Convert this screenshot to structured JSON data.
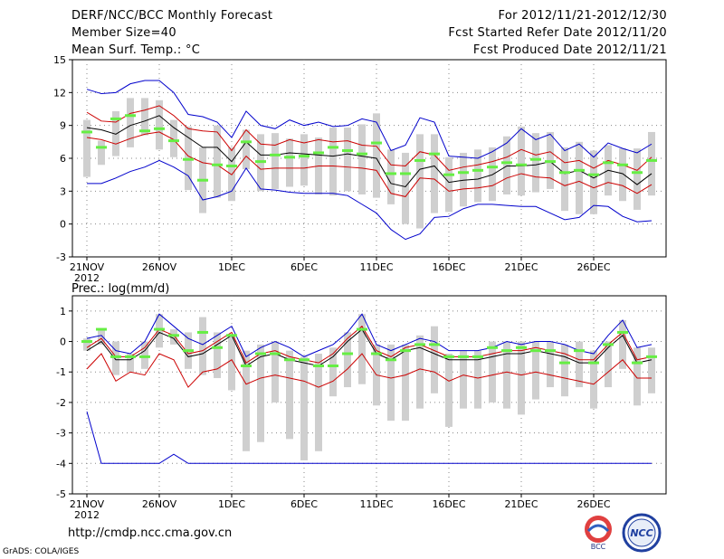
{
  "header": {
    "title": "DERF/NCC/BCC Monthly Forecast",
    "member_size": "Member Size=40",
    "variable": "Mean Surf. Temp.: °C",
    "for_range": "For 2012/11/21-2012/12/30",
    "fcst_started": "Fcst Started Refer Date 2012/11/20",
    "fcst_produced": "Fcst Produced Date 2012/11/21"
  },
  "footer": {
    "url": "http://cmdp.ncc.cma.gov.cn",
    "credit": "GrADS: COLA/IGES",
    "logo_bcc": "BCC",
    "logo_ncc": "NCC"
  },
  "colors": {
    "blue": "#0000cc",
    "red": "#cc0000",
    "black": "#000000",
    "green": "#66ee44",
    "box": "#cfcfcf"
  },
  "chart_data": [
    {
      "type": "line",
      "title": "Mean Surf. Temp.: °C",
      "ylim": [
        -3,
        15
      ],
      "yticks": [
        -3,
        0,
        3,
        6,
        9,
        12,
        15
      ],
      "xlabels": [
        {
          "day": 1,
          "label": "21NOV",
          "sub": "2012"
        },
        {
          "day": 6,
          "label": "26NOV"
        },
        {
          "day": 11,
          "label": "1DEC"
        },
        {
          "day": 16,
          "label": "6DEC"
        },
        {
          "day": 21,
          "label": "11DEC"
        },
        {
          "day": 26,
          "label": "16DEC"
        },
        {
          "day": 31,
          "label": "21DEC"
        },
        {
          "day": 36,
          "label": "26DEC"
        }
      ],
      "days": [
        1,
        2,
        3,
        4,
        5,
        6,
        7,
        8,
        9,
        10,
        11,
        12,
        13,
        14,
        15,
        16,
        17,
        18,
        19,
        20,
        21,
        22,
        23,
        24,
        25,
        26,
        27,
        28,
        29,
        30,
        31,
        32,
        33,
        34,
        35,
        36,
        37,
        38,
        39,
        40
      ],
      "series": [
        {
          "name": "max",
          "color": "blue",
          "values": [
            12.3,
            11.9,
            12.0,
            12.8,
            13.1,
            13.1,
            12.0,
            10.0,
            9.8,
            9.3,
            7.9,
            10.3,
            9.0,
            8.7,
            9.5,
            9.0,
            9.3,
            8.9,
            9.0,
            9.6,
            9.3,
            6.7,
            7.2,
            9.7,
            9.3,
            6.2,
            6.1,
            6.0,
            6.6,
            7.4,
            8.7,
            7.7,
            8.2,
            6.7,
            7.3,
            6.1,
            7.4,
            6.9,
            6.5,
            7.3
          ]
        },
        {
          "name": "upper",
          "color": "red",
          "values": [
            10.2,
            9.4,
            9.3,
            10.1,
            10.4,
            10.8,
            9.9,
            8.7,
            8.5,
            8.4,
            6.7,
            8.6,
            7.3,
            7.2,
            7.7,
            7.4,
            7.7,
            7.5,
            7.6,
            7.2,
            7.1,
            5.4,
            5.3,
            6.6,
            6.3,
            4.9,
            5.2,
            5.4,
            5.7,
            6.1,
            6.8,
            6.3,
            6.6,
            5.6,
            5.8,
            5.1,
            5.8,
            5.4,
            4.9,
            6.1
          ]
        },
        {
          "name": "mean",
          "color": "black",
          "values": [
            8.8,
            8.6,
            8.2,
            9.0,
            9.4,
            9.9,
            8.8,
            7.9,
            7.0,
            7.0,
            5.7,
            7.5,
            6.3,
            6.3,
            6.5,
            6.4,
            6.3,
            6.2,
            6.4,
            6.2,
            6.0,
            3.7,
            3.4,
            5.0,
            5.3,
            3.8,
            4.0,
            4.1,
            4.5,
            5.3,
            5.3,
            5.4,
            5.7,
            4.6,
            4.9,
            4.2,
            4.9,
            4.6,
            3.6,
            4.6
          ]
        },
        {
          "name": "lower",
          "color": "red",
          "values": [
            7.9,
            7.7,
            7.3,
            7.8,
            8.2,
            8.4,
            7.7,
            6.2,
            5.6,
            5.4,
            4.5,
            6.2,
            5.0,
            5.1,
            5.1,
            5.1,
            5.3,
            5.3,
            5.2,
            5.1,
            4.9,
            2.8,
            2.5,
            4.2,
            4.1,
            3.0,
            3.2,
            3.3,
            3.5,
            4.2,
            4.6,
            4.3,
            4.2,
            3.5,
            3.9,
            3.3,
            3.8,
            3.5,
            2.8,
            3.6
          ]
        },
        {
          "name": "min",
          "color": "blue",
          "values": [
            3.7,
            3.7,
            4.2,
            4.8,
            5.2,
            5.8,
            5.2,
            4.4,
            2.2,
            2.5,
            3.0,
            5.1,
            3.2,
            3.1,
            2.9,
            2.8,
            2.8,
            2.8,
            2.6,
            1.8,
            1.0,
            -0.5,
            -1.4,
            -0.9,
            0.6,
            0.7,
            1.4,
            1.8,
            1.8,
            1.7,
            1.6,
            1.6,
            1.0,
            0.4,
            0.6,
            1.7,
            1.6,
            0.7,
            0.2,
            0.3
          ]
        },
        {
          "name": "observed",
          "color": "green",
          "values": [
            8.4,
            7.0,
            9.6,
            9.9,
            8.5,
            8.7,
            7.6,
            5.9,
            4.0,
            5.4,
            5.3,
            7.5,
            5.7,
            6.3,
            6.1,
            6.2,
            6.5,
            7.0,
            6.7,
            6.4,
            7.4,
            4.6,
            4.6,
            5.8,
            6.4,
            4.5,
            4.7,
            4.9,
            5.2,
            5.6,
            5.4,
            5.9,
            5.7,
            4.7,
            4.9,
            4.5,
            5.6,
            5.4,
            4.7,
            5.8
          ]
        }
      ],
      "range_bars": {
        "low": [
          4.3,
          5.4,
          6.2,
          7.0,
          8.1,
          6.8,
          6.1,
          3.1,
          1.0,
          2.4,
          2.1,
          5.0,
          3.0,
          3.2,
          3.4,
          3.5,
          2.7,
          2.6,
          3.0,
          2.7,
          2.4,
          1.8,
          0.0,
          -0.4,
          1.0,
          1.1,
          1.6,
          2.0,
          2.1,
          2.7,
          2.6,
          2.9,
          3.2,
          1.2,
          0.9,
          0.9,
          2.6,
          2.1,
          1.3,
          2.6
        ],
        "high": [
          9.5,
          7.6,
          10.3,
          11.5,
          11.5,
          11.3,
          9.5,
          8.9,
          7.0,
          9.0,
          7.0,
          8.6,
          8.2,
          8.3,
          7.8,
          8.2,
          7.9,
          8.8,
          8.8,
          9.1,
          10.1,
          6.8,
          6.5,
          8.2,
          8.2,
          6.1,
          6.5,
          6.8,
          7.0,
          8.0,
          8.9,
          8.3,
          8.4,
          7.0,
          7.5,
          6.7,
          7.2,
          6.9,
          6.9,
          8.4
        ]
      }
    },
    {
      "type": "line",
      "title": "Prec.: log(mm/d)",
      "ylim": [
        -5,
        1.5
      ],
      "yticks": [
        -5,
        -4,
        -3,
        -2,
        -1,
        0,
        1
      ],
      "xlabels": [
        {
          "day": 1,
          "label": "21NOV",
          "sub": "2012"
        },
        {
          "day": 6,
          "label": "26NOV"
        },
        {
          "day": 11,
          "label": "1DEC"
        },
        {
          "day": 16,
          "label": "6DEC"
        },
        {
          "day": 21,
          "label": "11DEC"
        },
        {
          "day": 26,
          "label": "16DEC"
        },
        {
          "day": 31,
          "label": "21DEC"
        },
        {
          "day": 36,
          "label": "26DEC"
        }
      ],
      "days": [
        1,
        2,
        3,
        4,
        5,
        6,
        7,
        8,
        9,
        10,
        11,
        12,
        13,
        14,
        15,
        16,
        17,
        18,
        19,
        20,
        21,
        22,
        23,
        24,
        25,
        26,
        27,
        28,
        29,
        30,
        31,
        32,
        33,
        34,
        35,
        36,
        37,
        38,
        39,
        40
      ],
      "series": [
        {
          "name": "max",
          "color": "blue",
          "values": [
            0.1,
            0.2,
            -0.3,
            -0.4,
            0.0,
            0.9,
            0.5,
            0.1,
            -0.1,
            0.2,
            0.5,
            -0.5,
            -0.2,
            0.0,
            -0.2,
            -0.5,
            -0.3,
            -0.1,
            0.3,
            0.9,
            -0.1,
            -0.3,
            -0.1,
            0.1,
            0.0,
            -0.3,
            -0.3,
            -0.3,
            -0.2,
            0.0,
            -0.1,
            0.0,
            0.0,
            -0.1,
            -0.3,
            -0.4,
            0.2,
            0.7,
            -0.2,
            -0.1
          ]
        },
        {
          "name": "upper",
          "color": "red",
          "values": [
            -0.2,
            0.1,
            -0.5,
            -0.5,
            -0.2,
            0.4,
            0.2,
            -0.4,
            -0.3,
            0.0,
            0.3,
            -0.7,
            -0.4,
            -0.3,
            -0.5,
            -0.6,
            -0.7,
            -0.4,
            0.1,
            0.5,
            -0.3,
            -0.5,
            -0.2,
            -0.1,
            -0.3,
            -0.5,
            -0.5,
            -0.5,
            -0.4,
            -0.3,
            -0.3,
            -0.2,
            -0.3,
            -0.4,
            -0.6,
            -0.6,
            -0.1,
            0.3,
            -0.6,
            -0.5
          ]
        },
        {
          "name": "mean",
          "color": "black",
          "values": [
            -0.3,
            0.0,
            -0.6,
            -0.6,
            -0.3,
            0.3,
            0.1,
            -0.5,
            -0.4,
            -0.1,
            0.2,
            -0.8,
            -0.5,
            -0.4,
            -0.6,
            -0.7,
            -0.8,
            -0.5,
            0.0,
            0.4,
            -0.4,
            -0.6,
            -0.3,
            -0.2,
            -0.4,
            -0.6,
            -0.6,
            -0.6,
            -0.5,
            -0.4,
            -0.4,
            -0.3,
            -0.4,
            -0.5,
            -0.7,
            -0.7,
            -0.2,
            0.2,
            -0.7,
            -0.6
          ]
        },
        {
          "name": "lower",
          "color": "red",
          "values": [
            -0.9,
            -0.4,
            -1.3,
            -1.0,
            -1.1,
            -0.4,
            -0.6,
            -1.5,
            -1.0,
            -0.9,
            -0.6,
            -1.4,
            -1.2,
            -1.1,
            -1.2,
            -1.3,
            -1.5,
            -1.3,
            -0.9,
            -0.4,
            -1.1,
            -1.2,
            -1.1,
            -0.9,
            -1.0,
            -1.3,
            -1.1,
            -1.2,
            -1.1,
            -1.0,
            -1.1,
            -1.0,
            -1.1,
            -1.2,
            -1.3,
            -1.4,
            -1.0,
            -0.6,
            -1.2,
            -1.2
          ]
        },
        {
          "name": "min",
          "color": "blue",
          "values": [
            -2.3,
            -4.0,
            -4.0,
            -4.0,
            -4.0,
            -4.0,
            -3.7,
            -4.0,
            -4.0,
            -4.0,
            -4.0,
            -4.0,
            -4.0,
            -4.0,
            -4.0,
            -4.0,
            -4.0,
            -4.0,
            -4.0,
            -4.0,
            -4.0,
            -4.0,
            -4.0,
            -4.0,
            -4.0,
            -4.0,
            -4.0,
            -4.0,
            -4.0,
            -4.0,
            -4.0,
            -4.0,
            -4.0,
            -4.0,
            -4.0,
            -4.0,
            -4.0,
            -4.0,
            -4.0,
            -4.0
          ]
        },
        {
          "name": "observed",
          "color": "green",
          "values": [
            0.0,
            0.4,
            -0.5,
            -0.5,
            -0.5,
            0.4,
            0.2,
            -0.3,
            0.3,
            -0.2,
            0.2,
            -0.8,
            -0.4,
            -0.4,
            -0.6,
            -0.6,
            -0.8,
            -0.8,
            -0.4,
            0.4,
            -0.4,
            -0.6,
            -0.3,
            -0.1,
            -0.1,
            -0.5,
            -0.5,
            -0.5,
            -0.2,
            -0.3,
            -0.2,
            -0.3,
            -0.3,
            -0.7,
            -0.3,
            -0.7,
            -0.1,
            0.3,
            -0.7,
            -0.5
          ]
        }
      ],
      "range_bars": {
        "low": [
          -0.3,
          -0.1,
          -1.1,
          -1.0,
          -0.9,
          -0.2,
          -0.1,
          -0.9,
          -1.1,
          -1.2,
          -1.6,
          -3.6,
          -3.3,
          -2.0,
          -3.2,
          -3.9,
          -3.6,
          -1.8,
          -1.5,
          -1.4,
          -2.1,
          -2.6,
          -2.6,
          -2.2,
          -1.7,
          -2.8,
          -2.2,
          -2.2,
          -2.0,
          -2.2,
          -2.4,
          -1.9,
          -1.5,
          -1.8,
          -1.5,
          -2.2,
          -1.5,
          -0.9,
          -2.1,
          -1.7
        ],
        "high": [
          0.1,
          0.4,
          0.0,
          -0.4,
          0.0,
          0.9,
          0.4,
          0.3,
          0.8,
          0.3,
          0.2,
          -0.3,
          -0.1,
          0.0,
          -0.3,
          -0.5,
          -0.4,
          -0.2,
          0.3,
          0.9,
          -0.1,
          -0.1,
          -0.1,
          0.2,
          0.5,
          -0.4,
          -0.3,
          -0.3,
          0.0,
          0.0,
          0.0,
          0.0,
          0.0,
          -0.1,
          0.0,
          -0.3,
          0.0,
          0.7,
          -0.2,
          -0.2
        ]
      }
    }
  ]
}
